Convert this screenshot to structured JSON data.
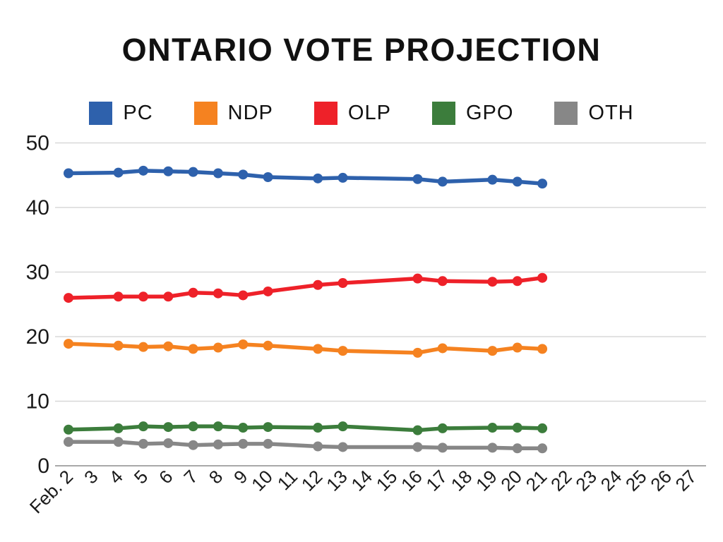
{
  "chart_data": {
    "type": "line",
    "title": "ONTARIO VOTE PROJECTION",
    "xlabel": "",
    "ylabel": "",
    "ylim": [
      0,
      50
    ],
    "yticks": [
      0,
      10,
      20,
      30,
      40,
      50
    ],
    "grid": true,
    "legend_position": "top",
    "x_tick_labels": [
      "Feb. 2",
      "3",
      "4",
      "5",
      "6",
      "7",
      "8",
      "9",
      "10",
      "11",
      "12",
      "13",
      "14",
      "15",
      "16",
      "17",
      "18",
      "19",
      "20",
      "21",
      "22",
      "23",
      "24",
      "25",
      "26",
      "27"
    ],
    "data_days": [
      2,
      4,
      5,
      6,
      7,
      8,
      9,
      10,
      12,
      13,
      16,
      17,
      19,
      20,
      21
    ],
    "series": [
      {
        "name": "PC",
        "color": "#2E61AC",
        "values": [
          45.3,
          45.4,
          45.7,
          45.6,
          45.5,
          45.3,
          45.1,
          44.7,
          44.5,
          44.6,
          44.4,
          44.0,
          44.3,
          44.0,
          43.7
        ]
      },
      {
        "name": "NDP",
        "color": "#F58220",
        "values": [
          18.9,
          18.6,
          18.4,
          18.5,
          18.1,
          18.3,
          18.8,
          18.6,
          18.1,
          17.8,
          17.5,
          18.2,
          17.8,
          18.3,
          18.1
        ]
      },
      {
        "name": "OLP",
        "color": "#EE2129",
        "values": [
          26.0,
          26.2,
          26.2,
          26.2,
          26.8,
          26.7,
          26.4,
          27.0,
          28.0,
          28.3,
          29.0,
          28.6,
          28.5,
          28.6,
          29.1
        ]
      },
      {
        "name": "GPO",
        "color": "#3C7D3C",
        "values": [
          5.6,
          5.8,
          6.1,
          6.0,
          6.1,
          6.1,
          5.9,
          6.0,
          5.9,
          6.1,
          5.5,
          5.8,
          5.9,
          5.9,
          5.8
        ]
      },
      {
        "name": "OTH",
        "color": "#878787",
        "values": [
          3.7,
          3.7,
          3.4,
          3.5,
          3.2,
          3.3,
          3.4,
          3.4,
          3.0,
          2.9,
          2.9,
          2.8,
          2.8,
          2.7,
          2.7
        ]
      }
    ],
    "colors": {
      "background": "#ffffff",
      "axis_text": "#1a1a1a",
      "gridline": "#d8d8d8",
      "baseline": "#a9a9a9"
    }
  }
}
